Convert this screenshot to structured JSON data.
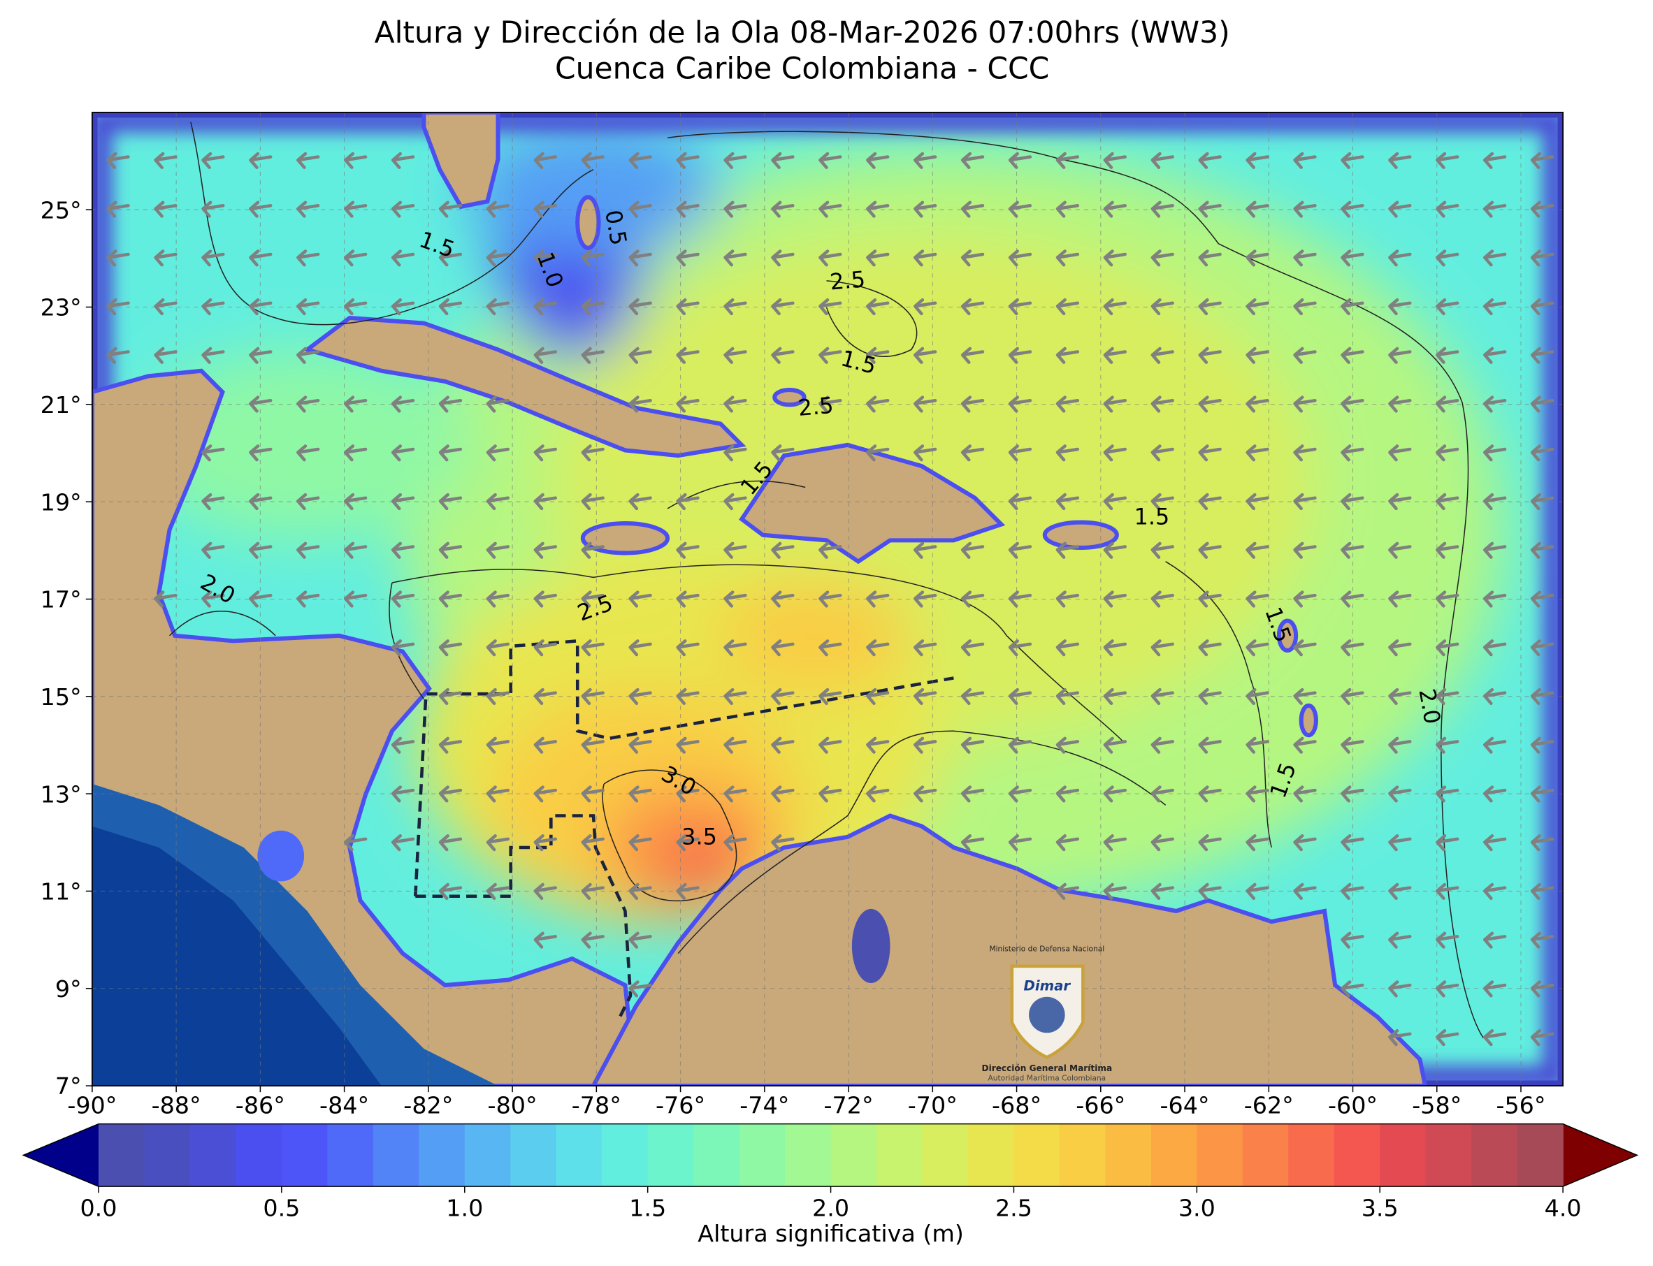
{
  "title": [
    "Altura y Dirección de la Ola 08-Mar-2026 07:00hrs (WW3)",
    "Cuenca Caribe Colombiana - CCC"
  ],
  "map": {
    "xlim": [
      -90,
      -55
    ],
    "ylim": [
      7,
      27
    ],
    "grid": true,
    "xticks": [
      {
        "value": -90,
        "label": "-90°"
      },
      {
        "value": -88,
        "label": "-88°"
      },
      {
        "value": -86,
        "label": "-86°"
      },
      {
        "value": -84,
        "label": "-84°"
      },
      {
        "value": -82,
        "label": "-82°"
      },
      {
        "value": -80,
        "label": "-80°"
      },
      {
        "value": -78,
        "label": "-78°"
      },
      {
        "value": -76,
        "label": "-76°"
      },
      {
        "value": -74,
        "label": "-74°"
      },
      {
        "value": -72,
        "label": "-72°"
      },
      {
        "value": -70,
        "label": "-70°"
      },
      {
        "value": -68,
        "label": "-68°"
      },
      {
        "value": -66,
        "label": "-66°"
      },
      {
        "value": -64,
        "label": "-64°"
      },
      {
        "value": -62,
        "label": "-62°"
      },
      {
        "value": -60,
        "label": "-60°"
      },
      {
        "value": -58,
        "label": "-58°"
      },
      {
        "value": -56,
        "label": "-56°"
      }
    ],
    "yticks": [
      {
        "value": 7,
        "label": "7°"
      },
      {
        "value": 9,
        "label": "9°"
      },
      {
        "value": 11,
        "label": "11°"
      },
      {
        "value": 13,
        "label": "13°"
      },
      {
        "value": 15,
        "label": "15°"
      },
      {
        "value": 17,
        "label": "17°"
      },
      {
        "value": 19,
        "label": "19°"
      },
      {
        "value": 21,
        "label": "21°"
      },
      {
        "value": 23,
        "label": "23°"
      },
      {
        "value": 25,
        "label": "25°"
      }
    ],
    "contour_labels": [
      1.5,
      {
        "value": 1,
        "label": "1.0"
      },
      0.5,
      2.5,
      1.5,
      2.5,
      1.5,
      2.5,
      {
        "value": 2,
        "label": "2.0"
      },
      {
        "value": 3,
        "label": "3.0"
      },
      3.5,
      1.5,
      1.5,
      {
        "value": 2,
        "label": "2.0"
      },
      1.5
    ]
  },
  "colorbar": {
    "clim": [
      0,
      4
    ],
    "label": "Altura significativa (m)",
    "under_color": "#00008b",
    "over_color": "#7f0000",
    "colors": [
      "#4b4fb0",
      "#4a4fc0",
      "#4b4fd6",
      "#4b4ff0",
      "#4d55f8",
      "#4f6af8",
      "#5284f7",
      "#559ef5",
      "#58b6f2",
      "#5bcdef",
      "#5ee0ea",
      "#62eedf",
      "#6cf5cc",
      "#7cf7b8",
      "#8ff8a5",
      "#a2f893",
      "#b5f681",
      "#c7f36f",
      "#d8ee5e",
      "#e8e650",
      "#f3dc47",
      "#f9cd44",
      "#fbbc43",
      "#fca943",
      "#fc9646",
      "#fb814a",
      "#f86b4d",
      "#f45650",
      "#e44a52",
      "#cf4a54",
      "#ba4a56",
      "#a64a58"
    ],
    "ticks": [
      {
        "value": 0,
        "label": "0.0"
      },
      {
        "value": 0.5,
        "label": "0.5"
      },
      {
        "value": 1,
        "label": "1.0"
      },
      {
        "value": 1.5,
        "label": "1.5"
      },
      {
        "value": 2,
        "label": "2.0"
      },
      {
        "value": 2.5,
        "label": "2.5"
      },
      {
        "value": 3,
        "label": "3.0"
      },
      {
        "value": 3.5,
        "label": "3.5"
      },
      {
        "value": 4,
        "label": "4.0"
      }
    ]
  },
  "logo": {
    "ministry": "Ministerio de Defensa Nacional",
    "brand": "Dimar",
    "name": "Dirección General Marítima",
    "subtitle": "Autoridad Marítima Colombiana"
  }
}
